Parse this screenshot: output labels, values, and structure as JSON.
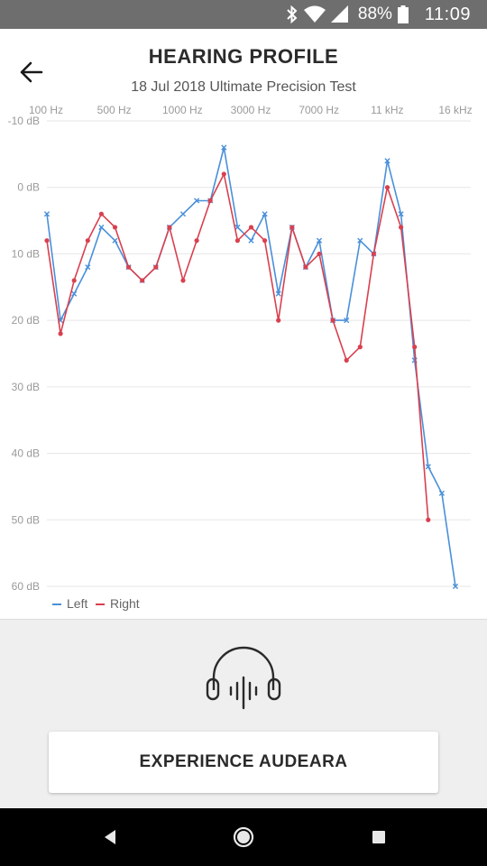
{
  "status_bar": {
    "battery": "88%",
    "time": "11:09",
    "icons": [
      "bluetooth-icon",
      "wifi-icon",
      "signal-icon",
      "battery-icon"
    ]
  },
  "header": {
    "back_icon": "arrow-left-icon",
    "title": "HEARING PROFILE",
    "subtitle": "18 Jul 2018 Ultimate Precision Test"
  },
  "chart_data": {
    "type": "line",
    "x_ticks": [
      "100 Hz",
      "500 Hz",
      "1000 Hz",
      "3000 Hz",
      "7000 Hz",
      "11 kHz",
      "16 kHz"
    ],
    "y_ticks": [
      "-10 dB",
      "0 dB",
      "10 dB",
      "20 dB",
      "30 dB",
      "40 dB",
      "50 dB",
      "60 dB"
    ],
    "ylim": [
      -10,
      60
    ],
    "y_inverted": true,
    "grid": true,
    "legend": "bottom-left",
    "series": [
      {
        "name": "Left",
        "color": "#4a90d9",
        "marker": "x",
        "values": [
          4,
          20,
          16,
          12,
          6,
          8,
          12,
          14,
          12,
          6,
          4,
          2,
          2,
          -6,
          6,
          8,
          4,
          16,
          6,
          12,
          8,
          20,
          20,
          8,
          10,
          -4,
          4,
          26,
          42,
          46,
          60
        ]
      },
      {
        "name": "Right",
        "color": "#d9404f",
        "marker": "dot",
        "values": [
          8,
          22,
          14,
          8,
          4,
          6,
          12,
          14,
          12,
          6,
          14,
          8,
          2,
          -2,
          8,
          6,
          8,
          20,
          6,
          12,
          10,
          20,
          26,
          24,
          10,
          0,
          6,
          24,
          50,
          null,
          null
        ]
      }
    ]
  },
  "bottom": {
    "icon": "headphones-icon",
    "cta_label": "EXPERIENCE AUDEARA"
  },
  "nav": {
    "icons": [
      "back-triangle-icon",
      "home-circle-icon",
      "recents-square-icon"
    ]
  }
}
